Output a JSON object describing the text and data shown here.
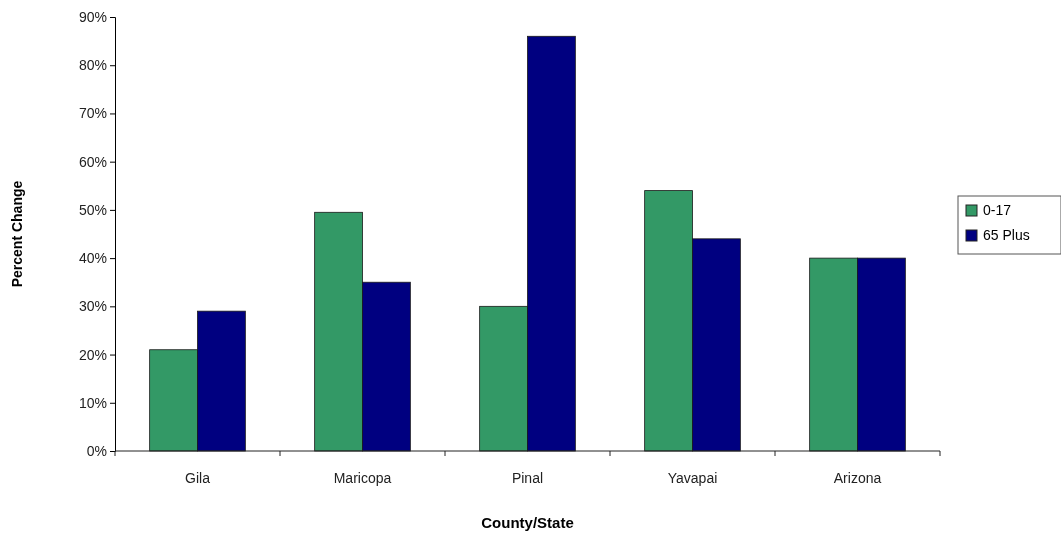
{
  "chart_data": {
    "type": "bar",
    "xlabel": "County/State",
    "ylabel": "Percent Change",
    "categories": [
      "Gila",
      "Maricopa",
      "Pinal",
      "Yavapai",
      "Arizona"
    ],
    "series": [
      {
        "name": "0-17",
        "color": "#339966",
        "values": [
          21,
          49.5,
          30,
          54,
          40
        ]
      },
      {
        "name": "65 Plus",
        "color": "#000080",
        "values": [
          29,
          35,
          86,
          44,
          40
        ]
      }
    ],
    "ylim": [
      0,
      90
    ],
    "yticks": [
      {
        "value": 0,
        "label": "0%"
      },
      {
        "value": 10,
        "label": "10%"
      },
      {
        "value": 20,
        "label": "20%"
      },
      {
        "value": 30,
        "label": "30%"
      },
      {
        "value": 40,
        "label": "40%"
      },
      {
        "value": 50,
        "label": "50%"
      },
      {
        "value": 60,
        "label": "60%"
      },
      {
        "value": 70,
        "label": "70%"
      },
      {
        "value": 80,
        "label": "80%"
      },
      {
        "value": 90,
        "label": "90%"
      }
    ],
    "grid": false,
    "legend": "right"
  }
}
